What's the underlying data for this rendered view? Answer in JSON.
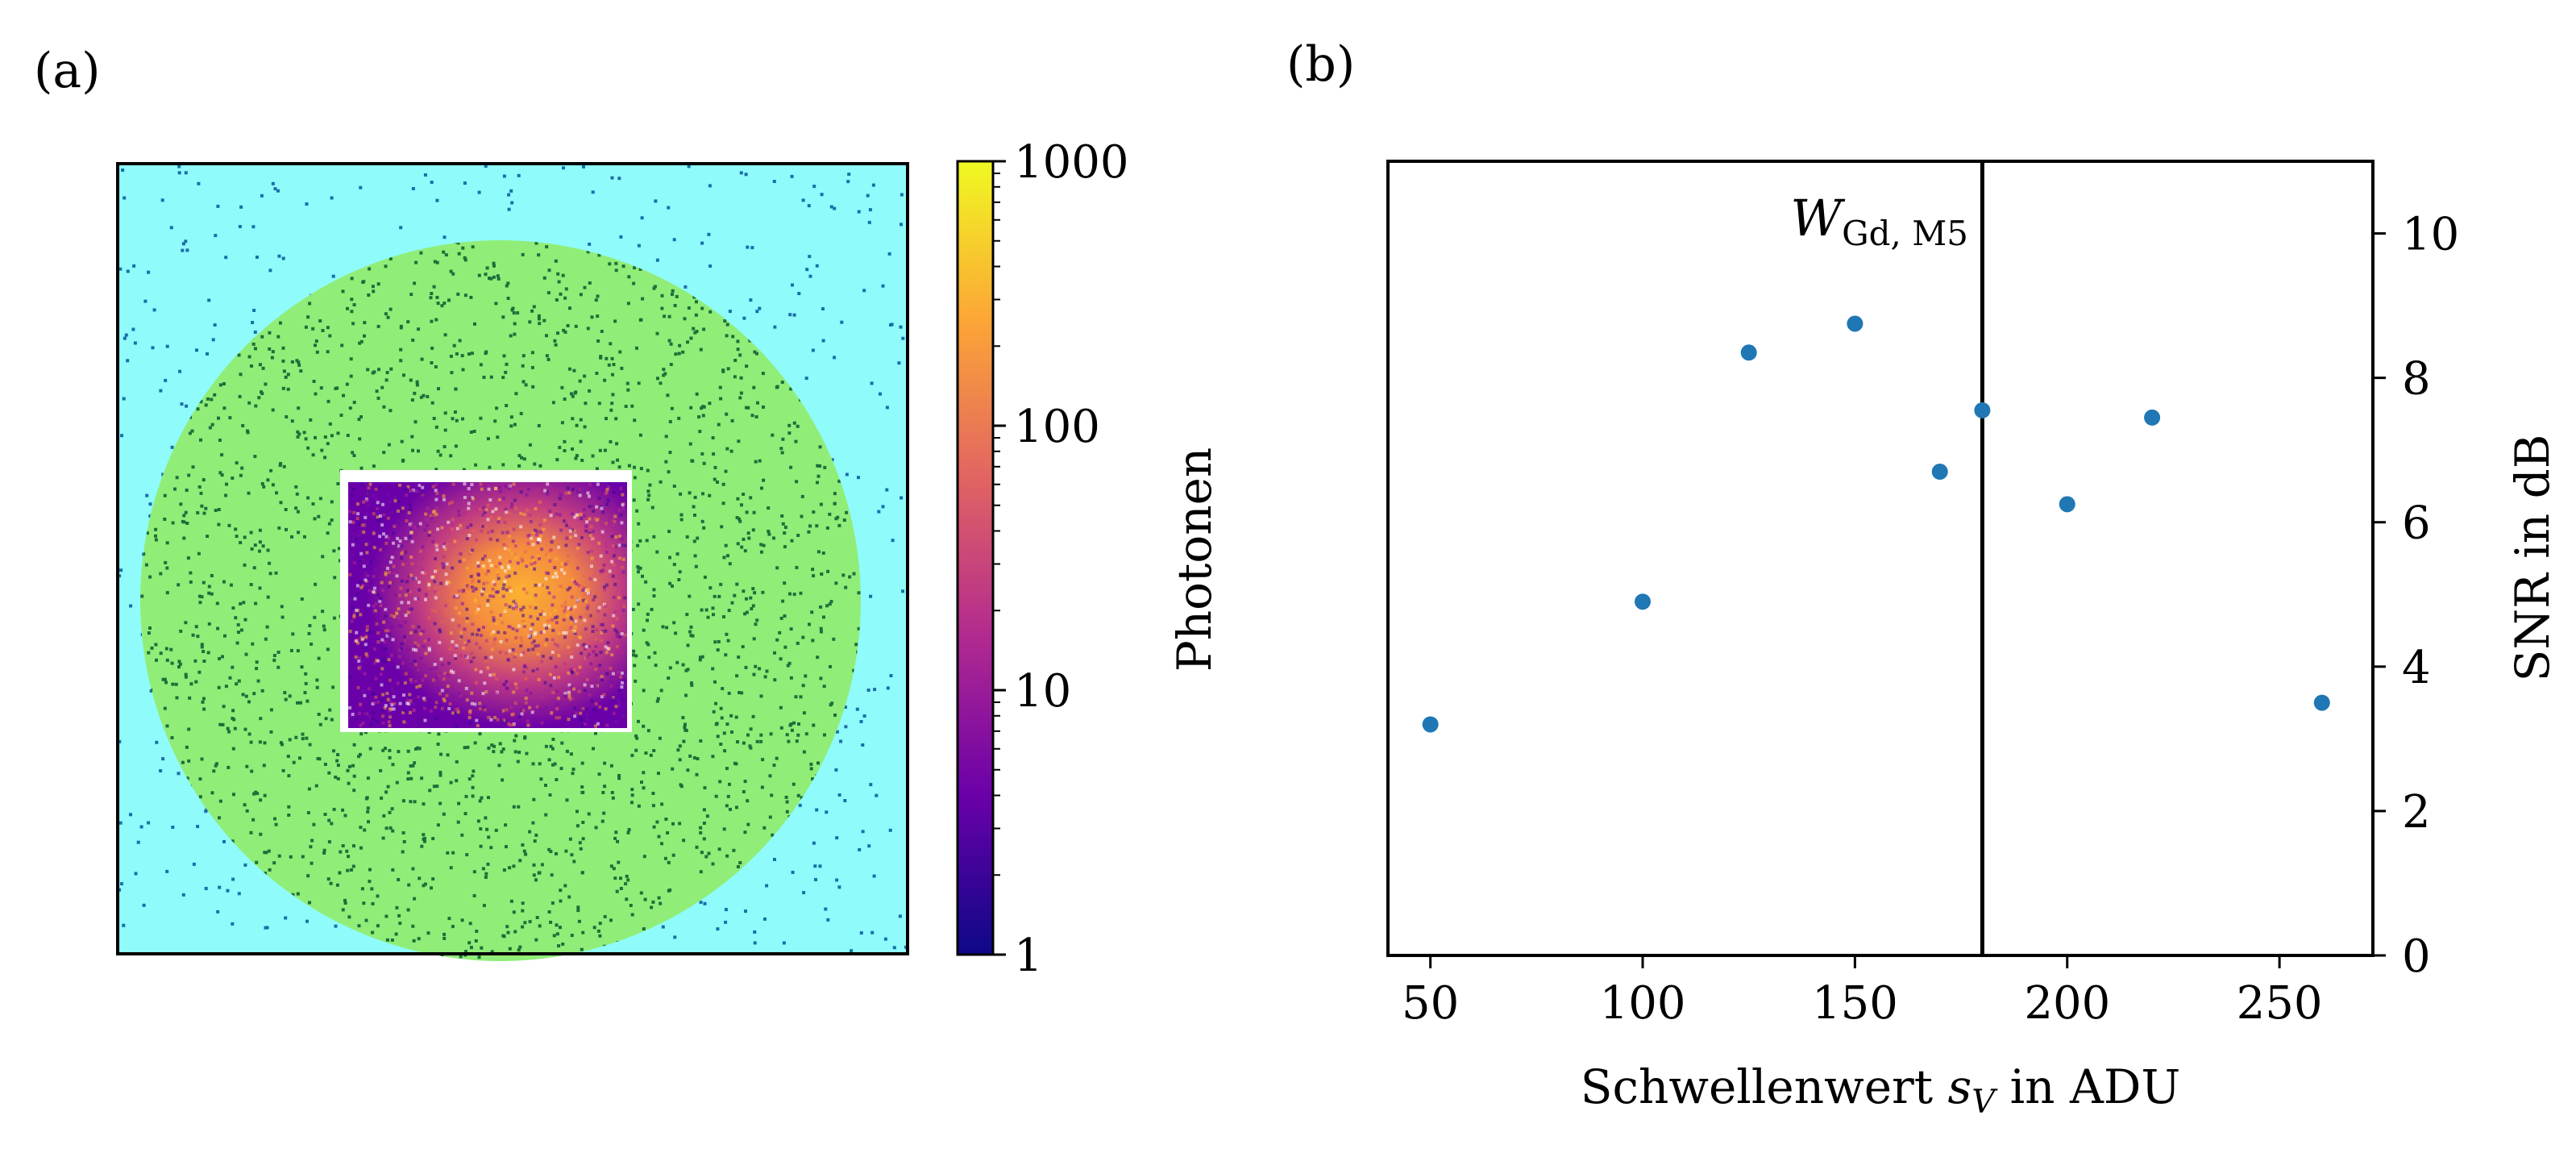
{
  "panel_labels": {
    "a": "(a)",
    "b": "(b)"
  },
  "colorbar": {
    "label": "Photonen",
    "scale": "log",
    "range": [
      1,
      1000
    ],
    "ticks": [
      "1",
      "10",
      "100",
      "1000"
    ],
    "colormap": [
      "#0d0887",
      "#6a00a8",
      "#b12a90",
      "#e16462",
      "#fca636",
      "#f0f921"
    ]
  },
  "image_panel": {
    "background_color": "#8ffbfb",
    "circle_color": "#90ee78",
    "speckle_color": "#1a6fa8",
    "circle_speckle_color": "#1f6e3a"
  },
  "chart_data": {
    "type": "scatter",
    "x": [
      50,
      100,
      125,
      150,
      170,
      180,
      200,
      220,
      260
    ],
    "y": [
      3.2,
      4.9,
      8.35,
      8.75,
      6.7,
      7.55,
      6.25,
      7.45,
      3.5
    ],
    "xlabel": "Schwellenwert s_V in ADU",
    "xlabel_main": "Schwellenwert ",
    "xlabel_sym": "s",
    "xlabel_sub": "V",
    "xlabel_tail": " in ADU",
    "ylabel": "SNR in dB",
    "xlim": [
      40,
      272
    ],
    "ylim": [
      0,
      11
    ],
    "xticks": [
      50,
      100,
      150,
      200,
      250
    ],
    "yticks": [
      0,
      2,
      4,
      6,
      8,
      10
    ],
    "y_axis_side": "right",
    "marker_color": "#1f77b4",
    "vline": {
      "x": 180,
      "label_main": "W",
      "label_sub": "Gd, M5"
    }
  }
}
